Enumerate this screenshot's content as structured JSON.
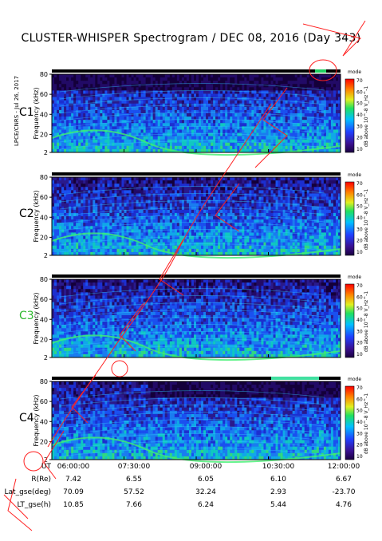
{
  "title": "CLUSTER-WHISPER Spectrogram / DEC 08, 2016 (Day 343)",
  "side_note": "LPCE/CNRS - Jul 26, 2017",
  "colors": {
    "panel_label_default": "#000000",
    "panel_label_c3": "#2fb82f",
    "annotation": "#ff2020"
  },
  "chart_data": [
    {
      "type": "heatmap",
      "panel": "C1",
      "ylabel": "Frequency (kHz)",
      "y_ticks": [
        "2",
        "20",
        "40",
        "60",
        "80"
      ],
      "ylim": [
        2,
        80
      ],
      "colorbar": {
        "label": "dB above 10^-8 V_Hz^-1",
        "ticks": [
          "10",
          "20",
          "30",
          "40",
          "50",
          "60",
          "70"
        ],
        "mode_label": "mode"
      }
    },
    {
      "type": "heatmap",
      "panel": "C2",
      "ylabel": "Frequency (kHz)",
      "y_ticks": [
        "2",
        "20",
        "40",
        "60",
        "80"
      ],
      "ylim": [
        2,
        80
      ],
      "colorbar": {
        "label": "dB above 10^-8 V_Hz^-1",
        "ticks": [
          "10",
          "20",
          "30",
          "40",
          "50",
          "60",
          "70"
        ],
        "mode_label": "mode"
      }
    },
    {
      "type": "heatmap",
      "panel": "C3",
      "ylabel": "Frequency (kHz)",
      "y_ticks": [
        "2",
        "20",
        "40",
        "60",
        "80"
      ],
      "ylim": [
        2,
        80
      ],
      "colorbar": {
        "label": "dB above 10^-8 V_Hz^-1",
        "ticks": [
          "10",
          "20",
          "30",
          "40",
          "50",
          "60",
          "70"
        ],
        "mode_label": "mode"
      }
    },
    {
      "type": "heatmap",
      "panel": "C4",
      "ylabel": "Frequency (kHz)",
      "y_ticks": [
        "2",
        "20",
        "40",
        "60",
        "80"
      ],
      "ylim": [
        2,
        80
      ],
      "colorbar": {
        "label": "dB above 10^-8 V_Hz^-1",
        "ticks": [
          "10",
          "20",
          "30",
          "40",
          "50",
          "60",
          "70"
        ],
        "mode_label": "mode"
      }
    }
  ],
  "x_axis": {
    "ticks": [
      "06:00:00",
      "07:30:00",
      "09:00:00",
      "10:30:00",
      "12:00:00"
    ]
  },
  "ephemeris": [
    {
      "label": "UT",
      "values": [
        "06:00:00",
        "07:30:00",
        "09:00:00",
        "10:30:00",
        "12:00:00"
      ]
    },
    {
      "label": "R(Re)",
      "values": [
        "7.42",
        "6.55",
        "6.05",
        "6.10",
        "6.67"
      ]
    },
    {
      "label": "Lat_gse(deg)",
      "values": [
        "70.09",
        "57.52",
        "32.24",
        "2.93",
        "-23.70"
      ]
    },
    {
      "label": "LT_gse(h)",
      "values": [
        "10.85",
        "7.66",
        "6.24",
        "5.44",
        "4.76"
      ]
    }
  ]
}
